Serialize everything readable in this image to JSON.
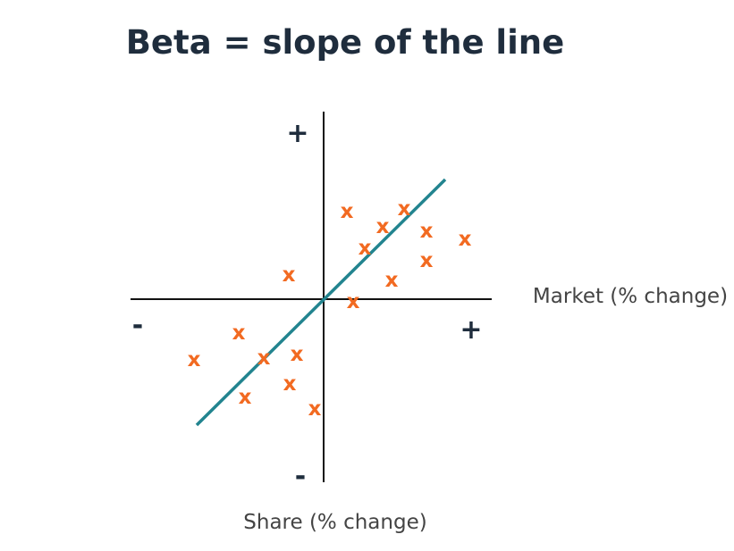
{
  "title": "Beta = slope of the line",
  "x_axis_label": "Market (% change)",
  "y_axis_label": "Share (% change)",
  "x_positive_sign": "+",
  "x_negative_sign": "-",
  "y_positive_sign": "+",
  "y_negative_sign": "-",
  "point_marker": "x",
  "colors": {
    "title": "#1f2d3d",
    "axis": "#111111",
    "signs": "#1f2d3d",
    "axis_labels": "#444444",
    "points": "#f26a21",
    "regression_line": "#22848f"
  }
}
